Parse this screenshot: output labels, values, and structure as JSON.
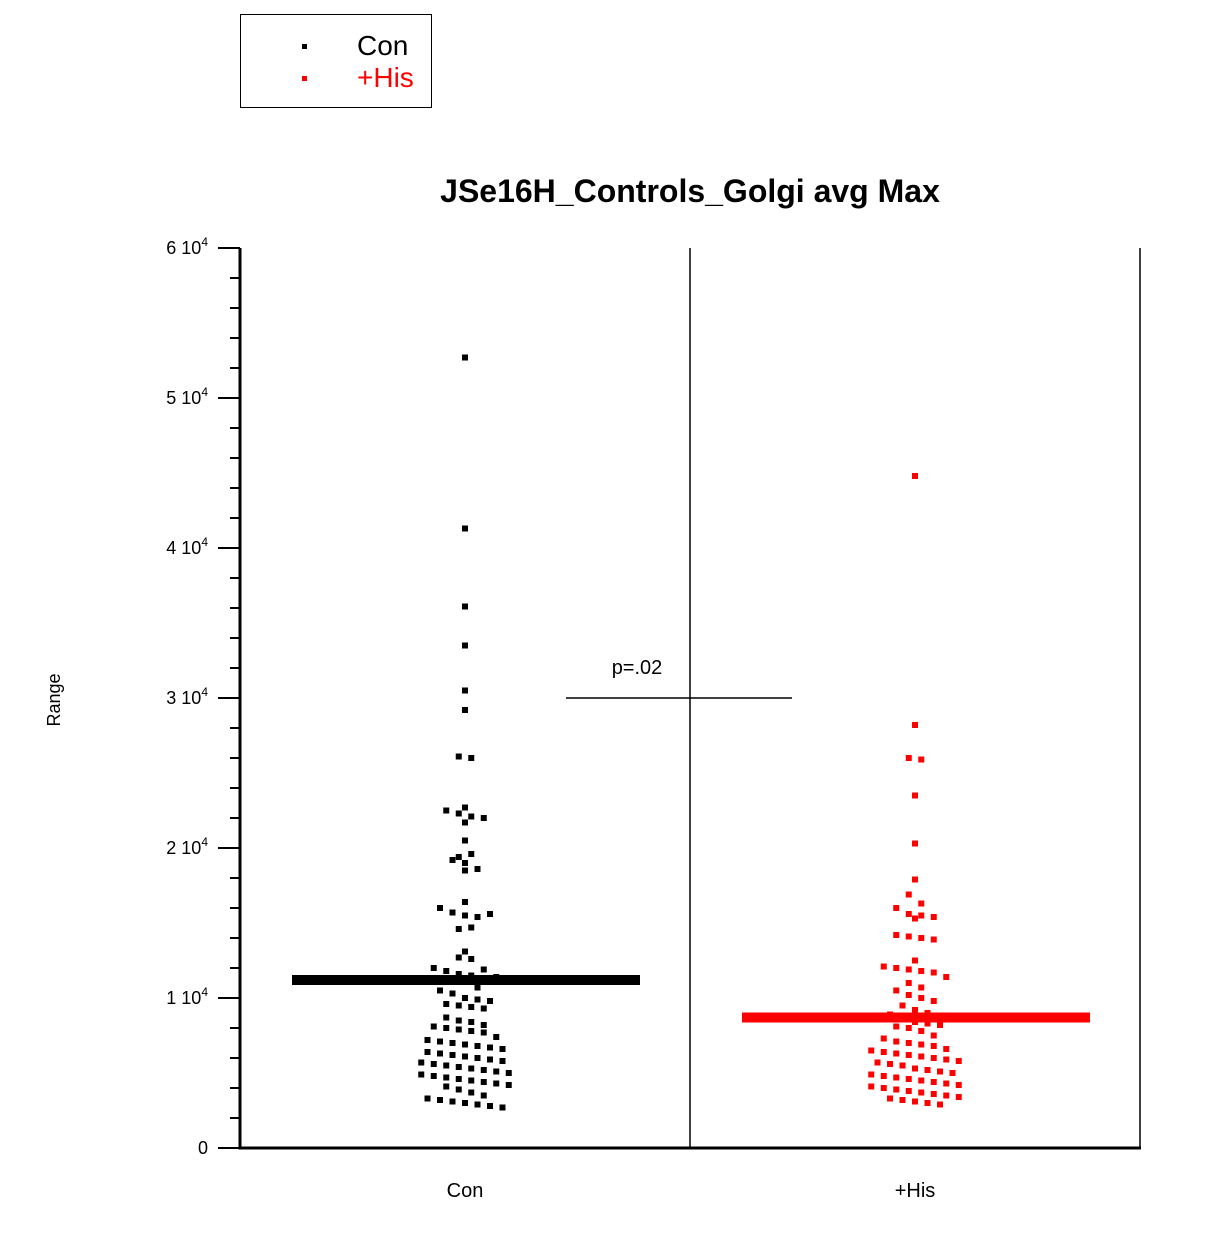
{
  "legend": {
    "items": [
      {
        "label": "Con",
        "color": "#000000"
      },
      {
        "label": "+His",
        "color": "#ff0000"
      }
    ]
  },
  "chart_data": {
    "type": "scatter",
    "title": "JSe16H_Controls_Golgi avg Max",
    "xlabel": "",
    "ylabel": "Range",
    "ylim": [
      0,
      60000
    ],
    "y_ticks": [
      {
        "value": 0,
        "mantissa": "0",
        "exponent": ""
      },
      {
        "value": 10000,
        "mantissa": "1 10",
        "exponent": "4"
      },
      {
        "value": 20000,
        "mantissa": "2 10",
        "exponent": "4"
      },
      {
        "value": 30000,
        "mantissa": "3 10",
        "exponent": "4"
      },
      {
        "value": 40000,
        "mantissa": "4 10",
        "exponent": "4"
      },
      {
        "value": 50000,
        "mantissa": "5 10",
        "exponent": "4"
      },
      {
        "value": 60000,
        "mantissa": "6 10",
        "exponent": "4"
      }
    ],
    "categories": [
      "Con",
      "+His"
    ],
    "grid": false,
    "legend_position": "top-left",
    "annotation": {
      "text": "p=.02",
      "y": 30000
    },
    "series": [
      {
        "name": "Con",
        "color": "#000000",
        "mean": 11200,
        "values": [
          52700,
          41300,
          36100,
          33500,
          30500,
          29200,
          26100,
          26000,
          22500,
          22300,
          22700,
          22100,
          21700,
          22000,
          20500,
          19400,
          19200,
          19600,
          19000,
          18600,
          18500,
          16400,
          16000,
          15700,
          15500,
          15400,
          15600,
          14600,
          14700,
          13100,
          12700,
          12600,
          12000,
          11800,
          11600,
          11500,
          11300,
          11900,
          11400,
          11200,
          10700,
          10500,
          10300,
          10000,
          9900,
          9800,
          9600,
          9500,
          9400,
          9300,
          8700,
          8500,
          8400,
          8200,
          8100,
          8000,
          7900,
          7800,
          7700,
          7400,
          7200,
          7100,
          7000,
          6900,
          6800,
          6700,
          6600,
          6400,
          6300,
          6200,
          6100,
          6000,
          5900,
          5800,
          5700,
          5600,
          5500,
          5400,
          5300,
          5200,
          5100,
          5000,
          4900,
          4800,
          4700,
          4600,
          4500,
          4400,
          4300,
          4200,
          4100,
          3900,
          3700,
          3500,
          3300,
          3200,
          3100,
          3000,
          2900,
          2800,
          2700
        ]
      },
      {
        "name": "+His",
        "color": "#ff0000",
        "mean": 8700,
        "values": [
          44800,
          28200,
          26000,
          25900,
          23500,
          20300,
          17900,
          16900,
          16300,
          16000,
          15600,
          15500,
          15400,
          15300,
          14200,
          14100,
          14000,
          13900,
          12500,
          12100,
          12000,
          11900,
          11800,
          11700,
          11400,
          11000,
          10700,
          10500,
          10200,
          10000,
          9800,
          9500,
          9200,
          9000,
          8900,
          8600,
          8400,
          8300,
          8200,
          8100,
          8000,
          7800,
          7500,
          7300,
          7100,
          7000,
          6900,
          6800,
          6600,
          6500,
          6400,
          6300,
          6200,
          6100,
          6000,
          5900,
          5800,
          5700,
          5600,
          5500,
          5300,
          5200,
          5100,
          5000,
          4900,
          4800,
          4700,
          4600,
          4500,
          4400,
          4300,
          4200,
          4100,
          4000,
          3900,
          3800,
          3700,
          3600,
          3500,
          3400,
          3300,
          3200,
          3100,
          3000,
          2900
        ]
      }
    ]
  }
}
